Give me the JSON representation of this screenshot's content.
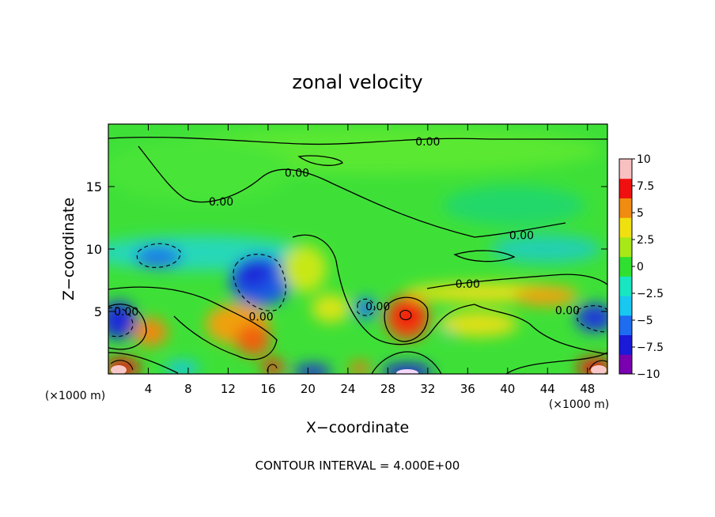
{
  "chart_data": {
    "type": "heatmap",
    "title": "zonal velocity",
    "xlabel": "X−coordinate",
    "ylabel": "Z−coordinate",
    "x_unit_left": "(×1000 m)",
    "x_unit_right": "(×1000 m)",
    "footer": "CONTOUR INTERVAL = 4.000E+00",
    "xlim": [
      0,
      50
    ],
    "ylim": [
      0,
      20
    ],
    "x_ticks": [
      4,
      8,
      12,
      16,
      20,
      24,
      28,
      32,
      36,
      40,
      44,
      48
    ],
    "y_ticks": [
      5,
      10,
      15
    ],
    "colorbar": {
      "range": [
        -10,
        10
      ],
      "ticks": [
        "10",
        "7.5",
        "5",
        "2.5",
        "0",
        "−2.5",
        "−5",
        "−7.5",
        "−10"
      ],
      "tick_values": [
        10,
        7.5,
        5,
        2.5,
        0,
        -2.5,
        -5,
        -7.5,
        -10
      ],
      "colors": [
        "#7a00b0",
        "#1a1ad8",
        "#1e6cf0",
        "#18c8f0",
        "#18e6c0",
        "#30e030",
        "#a8e818",
        "#f0e010",
        "#f08c10",
        "#f01010",
        "#f8c0c0"
      ]
    },
    "contour_label": "0.00",
    "contour_labels": [
      {
        "text": "0.00",
        "x": 32.0,
        "y": 18.6
      },
      {
        "text": "0.00",
        "x": 18.9,
        "y": 16.1
      },
      {
        "text": "0.00",
        "x": 11.3,
        "y": 13.8
      },
      {
        "text": "0.00",
        "x": 41.4,
        "y": 11.1
      },
      {
        "text": "0.00",
        "x": 36.0,
        "y": 7.2
      },
      {
        "text": "0.00",
        "x": 46.0,
        "y": 5.1
      },
      {
        "text": "0.00",
        "x": 1.8,
        "y": 5.0
      },
      {
        "text": "0.00",
        "x": 15.3,
        "y": 4.6
      },
      {
        "text": "0.00",
        "x": 27.0,
        "y": 5.4
      }
    ],
    "features": [
      {
        "x": 14.5,
        "y": 8.3,
        "value": -7.5
      },
      {
        "x": 5.0,
        "y": 9.8,
        "value": -5
      },
      {
        "x": 0.5,
        "y": 4.5,
        "value": -9
      },
      {
        "x": 47.5,
        "y": 4.5,
        "value": -7
      },
      {
        "x": 29.8,
        "y": 4.5,
        "value": 8
      },
      {
        "x": 2.5,
        "y": 0.6,
        "value": 10
      },
      {
        "x": 48.0,
        "y": 0.6,
        "value": 10
      },
      {
        "x": 30.0,
        "y": 0.3,
        "value": -9
      },
      {
        "x": 20.0,
        "y": 0.3,
        "value": -8
      },
      {
        "x": 14.0,
        "y": 2.8,
        "value": 6
      },
      {
        "x": 4.5,
        "y": 2.8,
        "value": 6
      },
      {
        "x": 22.5,
        "y": 5.5,
        "value": 3
      },
      {
        "x": 40.0,
        "y": 6.2,
        "value": 4
      }
    ]
  }
}
